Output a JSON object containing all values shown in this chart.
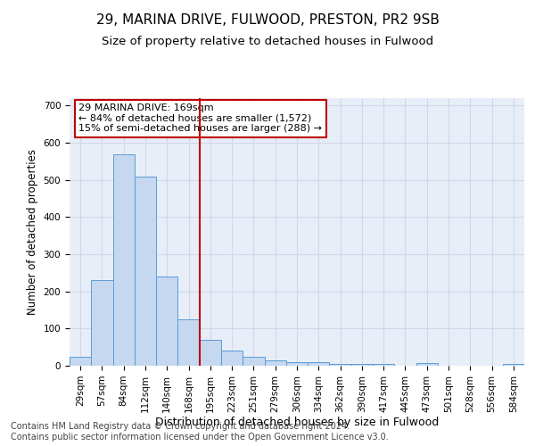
{
  "title1": "29, MARINA DRIVE, FULWOOD, PRESTON, PR2 9SB",
  "title2": "Size of property relative to detached houses in Fulwood",
  "xlabel": "Distribution of detached houses by size in Fulwood",
  "ylabel": "Number of detached properties",
  "categories": [
    "29sqm",
    "57sqm",
    "84sqm",
    "112sqm",
    "140sqm",
    "168sqm",
    "195sqm",
    "223sqm",
    "251sqm",
    "279sqm",
    "306sqm",
    "334sqm",
    "362sqm",
    "390sqm",
    "417sqm",
    "445sqm",
    "473sqm",
    "501sqm",
    "528sqm",
    "556sqm",
    "584sqm"
  ],
  "values": [
    25,
    230,
    570,
    510,
    240,
    125,
    70,
    40,
    25,
    15,
    10,
    10,
    5,
    5,
    5,
    0,
    7,
    0,
    0,
    0,
    5
  ],
  "bar_color": "#c5d8f0",
  "bar_edge_color": "#5b9bd5",
  "bar_width": 1.0,
  "vline_x": 5.5,
  "vline_color": "#c00000",
  "annotation_line1": "29 MARINA DRIVE: 169sqm",
  "annotation_line2": "← 84% of detached houses are smaller (1,572)",
  "annotation_line3": "15% of semi-detached houses are larger (288) →",
  "annotation_box_color": "white",
  "annotation_box_edge": "#c00000",
  "ylim": [
    0,
    720
  ],
  "yticks": [
    0,
    100,
    200,
    300,
    400,
    500,
    600,
    700
  ],
  "grid_color": "#d0d8e8",
  "background_color": "#e8eef8",
  "footer": "Contains HM Land Registry data © Crown copyright and database right 2024.\nContains public sector information licensed under the Open Government Licence v3.0.",
  "footer_fontsize": 7,
  "title1_fontsize": 11,
  "title2_fontsize": 9.5,
  "xlabel_fontsize": 9,
  "ylabel_fontsize": 8.5,
  "tick_fontsize": 7.5,
  "annotation_fontsize": 8
}
